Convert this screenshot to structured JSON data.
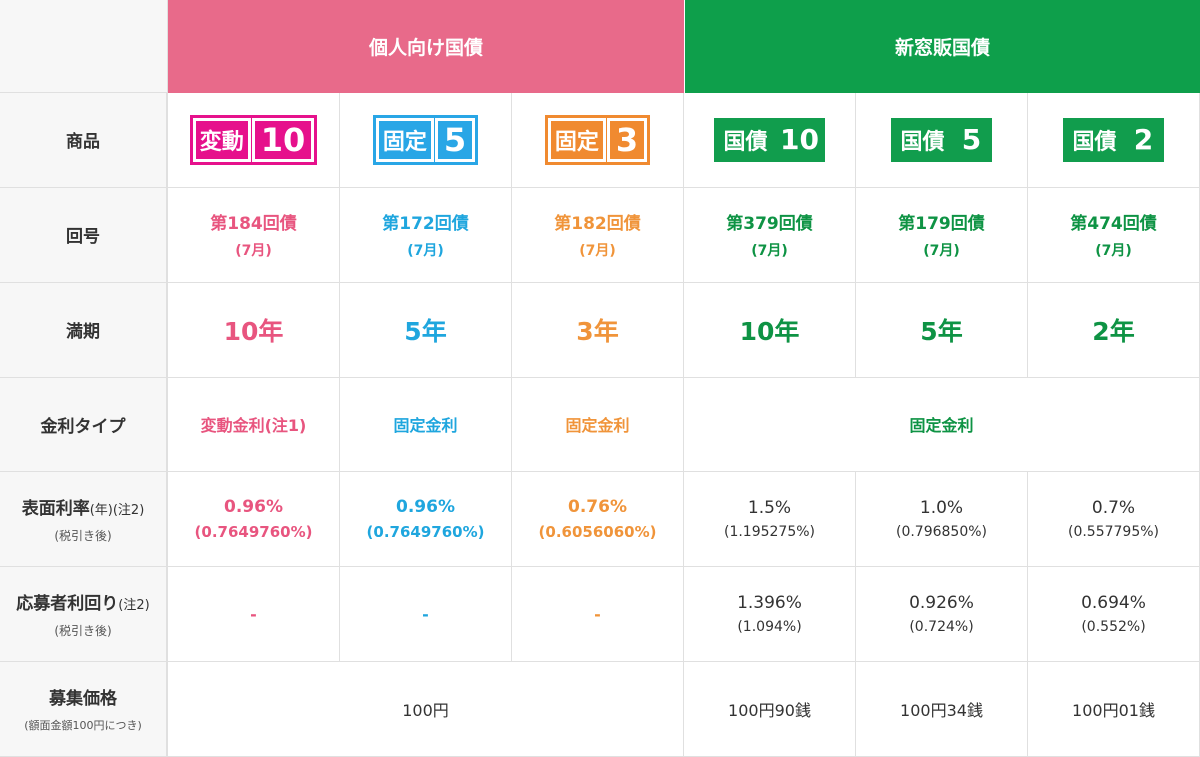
{
  "headers": {
    "individual": "個人向け国債",
    "new_window": "新窓販国債"
  },
  "row_labels": {
    "product": "商品",
    "issue": "回号",
    "maturity": "満期",
    "rate_type": "金利タイプ",
    "coupon_main": "表面利率",
    "coupon_note": "(年)(注2)",
    "coupon_sub": "(税引き後)",
    "yield_main": "応募者利回り",
    "yield_note": "(注2)",
    "yield_sub": "(税引き後)",
    "price_main": "募集価格",
    "price_sub": "(額面金額100円につき)"
  },
  "products": [
    {
      "logo_text": "変動",
      "logo_num": "10",
      "icon": "hendo-10-logo"
    },
    {
      "logo_text": "固定",
      "logo_num": "5",
      "icon": "kotei-5-logo"
    },
    {
      "logo_text": "固定",
      "logo_num": "3",
      "icon": "kotei-3-logo"
    },
    {
      "logo_text": "国債",
      "logo_num": "10",
      "icon": "kokusai-10-logo"
    },
    {
      "logo_text": "国債",
      "logo_num": "5",
      "icon": "kokusai-5-logo"
    },
    {
      "logo_text": "国債",
      "logo_num": "2",
      "icon": "kokusai-2-logo"
    }
  ],
  "issues": [
    {
      "name": "第184回債",
      "month": "(7月)"
    },
    {
      "name": "第172回債",
      "month": "(7月)"
    },
    {
      "name": "第182回債",
      "month": "(7月)"
    },
    {
      "name": "第379回債",
      "month": "(7月)"
    },
    {
      "name": "第179回債",
      "month": "(7月)"
    },
    {
      "name": "第474回債",
      "month": "(7月)"
    }
  ],
  "maturities": [
    "10年",
    "5年",
    "3年",
    "10年",
    "5年",
    "2年"
  ],
  "rate_types": {
    "c1": "変動金利(注1)",
    "c2": "固定金利",
    "c3": "固定金利",
    "new_window": "固定金利"
  },
  "coupon_rates": [
    {
      "rate": "0.96%",
      "after_tax": "(0.7649760%)"
    },
    {
      "rate": "0.96%",
      "after_tax": "(0.7649760%)"
    },
    {
      "rate": "0.76%",
      "after_tax": "(0.6056060%)"
    },
    {
      "rate": "1.5%",
      "after_tax": "(1.195275%)"
    },
    {
      "rate": "1.0%",
      "after_tax": "(0.796850%)"
    },
    {
      "rate": "0.7%",
      "after_tax": "(0.557795%)"
    }
  ],
  "yields": [
    {
      "value": "-"
    },
    {
      "value": "-"
    },
    {
      "value": "-"
    },
    {
      "value": "1.396%",
      "after_tax": "(1.094%)"
    },
    {
      "value": "0.926%",
      "after_tax": "(0.724%)"
    },
    {
      "value": "0.694%",
      "after_tax": "(0.552%)"
    }
  ],
  "prices": {
    "individual": "100円",
    "c4": "100円90銭",
    "c5": "100円34銭",
    "c6": "100円01銭"
  },
  "colors": {
    "pink_header": "#e86a8a",
    "green_header": "#0e9f4b",
    "pink": "#e8557f",
    "blue": "#1fa6de",
    "orange": "#f0943a",
    "green": "#0e9344",
    "logo_pink": "#e6118c",
    "logo_blue": "#29a6e6",
    "logo_orange": "#f08a30",
    "logo_green": "#119d4d"
  }
}
